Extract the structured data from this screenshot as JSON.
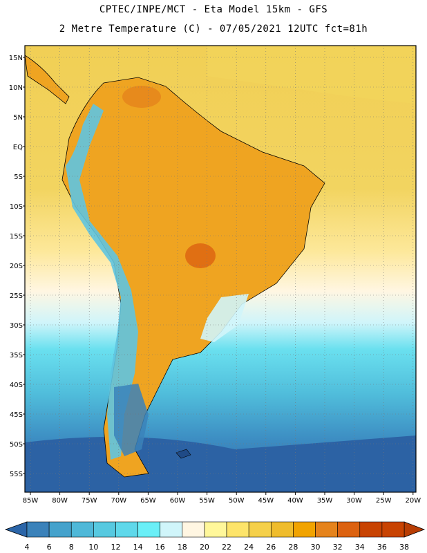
{
  "header": {
    "line1": "CPTEC/INPE/MCT -  Eta Model 15km - GFS",
    "line2": "2 Metre Temperature (C) - 07/05/2021 12UTC fct=81h"
  },
  "map": {
    "lat_labels": [
      "15N",
      "10N",
      "5N",
      "EQ",
      "5S",
      "10S",
      "15S",
      "20S",
      "25S",
      "30S",
      "35S",
      "40S",
      "45S",
      "50S",
      "55S"
    ],
    "lon_labels": [
      "85W",
      "80W",
      "75W",
      "70W",
      "65W",
      "60W",
      "55W",
      "50W",
      "45W",
      "40W",
      "35W",
      "30W",
      "25W",
      "20W"
    ]
  },
  "colorbar": {
    "ticks": [
      "4",
      "6",
      "8",
      "10",
      "12",
      "14",
      "16",
      "18",
      "20",
      "22",
      "24",
      "26",
      "28",
      "30",
      "32",
      "34",
      "36",
      "38"
    ],
    "colors": [
      "#2b65a8",
      "#3b82ba",
      "#45a2cc",
      "#4fb8d8",
      "#57c9e0",
      "#5fd8ea",
      "#6aeff7",
      "#d0f5fa",
      "#fff6e2",
      "#fff79a",
      "#fde46a",
      "#f5d04a",
      "#efbc2c",
      "#f1a300",
      "#e5831c",
      "#dc6210",
      "#c84302",
      "#b83d04"
    ]
  },
  "legend_swatches": {
    "ocean": "#e8c94c",
    "land_hot": "#efa421",
    "cold_band": "#2f6eaf"
  }
}
